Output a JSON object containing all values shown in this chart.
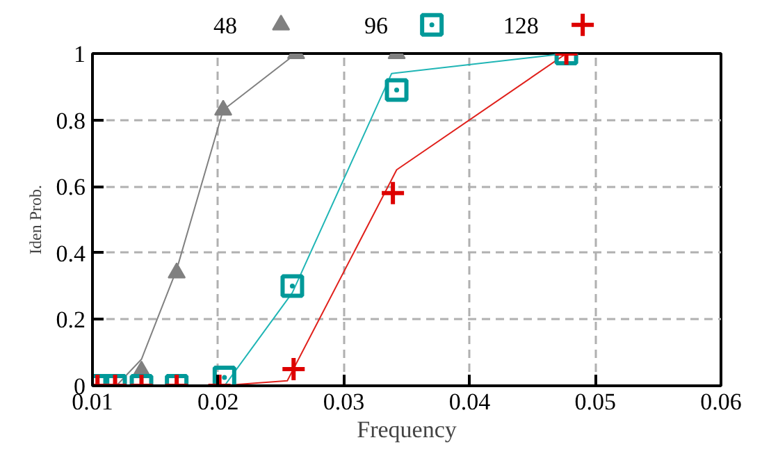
{
  "chart_data": {
    "type": "scatter",
    "xlabel": "Frequency",
    "ylabel": "Iden Prob.",
    "xlim": [
      0.01,
      0.06
    ],
    "ylim": [
      0,
      1
    ],
    "xticks": [
      0.01,
      0.02,
      0.03,
      0.04,
      0.05,
      0.06
    ],
    "yticks": [
      0,
      0.2,
      0.4,
      0.6,
      0.8,
      1
    ],
    "grid": true,
    "legend": "top",
    "series": [
      {
        "type": "line",
        "color": "#808080",
        "marker": "none",
        "x": [
          0.0119,
          0.0139,
          0.0167,
          0.0204,
          0.0262
        ],
        "values": [
          0,
          0.08,
          0.35,
          0.83,
          1.0
        ]
      },
      {
        "type": "line",
        "color": "#1fb5b5",
        "marker": "none",
        "x": [
          0.0205,
          0.0259,
          0.0338,
          0.0477
        ],
        "values": [
          0,
          0.28,
          0.94,
          1.0
        ]
      },
      {
        "type": "line",
        "color": "#e0201b",
        "marker": "none",
        "x": [
          0.0201,
          0.0255,
          0.0342,
          0.0477
        ],
        "values": [
          0,
          0.015,
          0.65,
          1.0
        ]
      },
      {
        "name": "48",
        "color": "#808080",
        "marker": "triangle",
        "x": [
          0.0139,
          0.0167,
          0.0204,
          0.0262,
          0.0342
        ],
        "values": [
          0.045,
          0.34,
          0.83,
          1.0,
          1.0
        ]
      },
      {
        "name": "96",
        "color": "#009999",
        "marker": "square",
        "x": [
          0.0104,
          0.0118,
          0.0139,
          0.0167,
          0.0205,
          0.0259,
          0.0342,
          0.0477
        ],
        "values": [
          0,
          0,
          0,
          0,
          0.025,
          0.3,
          0.89,
          1.0
        ]
      },
      {
        "name": "128",
        "color": "#dd0000",
        "marker": "cross",
        "x": [
          0.0104,
          0.0118,
          0.0139,
          0.0167,
          0.0201,
          0.026,
          0.0339,
          0.0477
        ],
        "values": [
          0,
          0,
          0,
          0,
          0,
          0.05,
          0.58,
          1.0
        ]
      }
    ]
  }
}
